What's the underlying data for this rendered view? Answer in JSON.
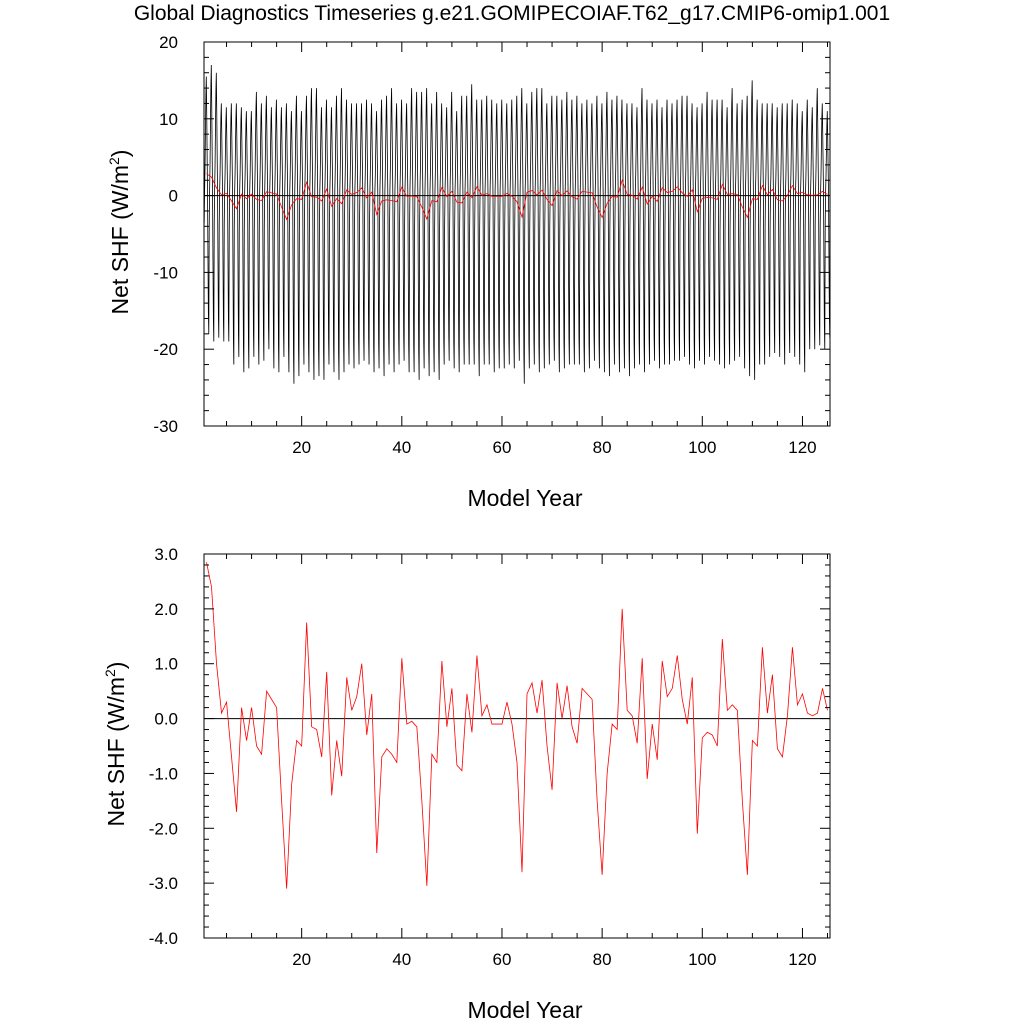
{
  "title": "Global Diagnostics Timeseries g.e21.GOMIPECOIAF.T62_g17.CMIP6-omip1.001",
  "chart_data": [
    {
      "type": "line",
      "xlabel": "Model Year",
      "ylabel_main": "Net SHF (W/m",
      "ylabel_sup": "2",
      "ylabel_close": ")",
      "xlim": [
        0.5,
        125.5
      ],
      "ylim": [
        -30,
        20
      ],
      "xticks": [
        20,
        40,
        60,
        80,
        100,
        120
      ],
      "xtick_labels": [
        "20",
        "40",
        "60",
        "80",
        "100",
        "120"
      ],
      "yticks": [
        -30,
        -20,
        -10,
        0,
        10,
        20
      ],
      "ytick_labels": [
        "-30",
        "-20",
        "-10",
        "0",
        "10",
        "20"
      ],
      "zero_line": true,
      "series": [
        {
          "color": "#000000",
          "kind": "monthly",
          "annual_peaks": [
            15.5,
            17.0,
            16.0,
            12.0,
            11.5,
            12.0,
            12.0,
            11.5,
            11.0,
            11.0,
            13.5,
            12.0,
            13.0,
            11.5,
            12.5,
            11.5,
            12.0,
            11.0,
            13.0,
            11.0,
            13.0,
            14.0,
            14.0,
            11.5,
            12.5,
            11.5,
            13.0,
            14.0,
            12.5,
            12.0,
            12.0,
            12.0,
            12.5,
            12.0,
            11.0,
            12.5,
            13.0,
            14.0,
            12.0,
            12.5,
            12.0,
            14.0,
            13.5,
            13.5,
            14.0,
            12.0,
            13.5,
            12.0,
            11.5,
            13.5,
            11.0,
            13.0,
            13.0,
            14.5,
            12.5,
            12.5,
            13.0,
            12.5,
            12.0,
            12.5,
            12.0,
            12.5,
            13.0,
            14.0,
            12.0,
            13.5,
            14.0,
            14.0,
            12.0,
            13.0,
            13.0,
            12.5,
            13.5,
            12.5,
            13.0,
            12.0,
            12.5,
            12.0,
            13.0,
            12.0,
            13.5,
            12.5,
            13.0,
            12.5,
            12.0,
            12.0,
            11.5,
            14.0,
            12.5,
            12.0,
            12.5,
            11.5,
            12.5,
            12.0,
            12.5,
            13.0,
            13.0,
            12.0,
            11.5,
            12.0,
            13.5,
            12.5,
            12.5,
            12.5,
            11.5,
            14.0,
            12.0,
            12.5,
            13.0,
            15.0,
            12.5,
            12.0,
            12.0,
            12.0,
            11.5,
            12.0,
            12.0,
            12.5,
            12.0,
            11.0,
            12.5,
            11.5,
            14.0,
            12.0,
            11.0
          ],
          "annual_troughs": [
            -18.0,
            -19.0,
            -18.5,
            -19.0,
            -19.0,
            -22.0,
            -21.0,
            -23.0,
            -22.5,
            -21.0,
            -22.0,
            -21.5,
            -20.0,
            -22.5,
            -23.0,
            -21.0,
            -23.0,
            -24.5,
            -23.5,
            -22.0,
            -23.0,
            -24.0,
            -23.5,
            -24.0,
            -22.0,
            -23.0,
            -24.0,
            -23.0,
            -22.0,
            -22.5,
            -22.0,
            -21.5,
            -22.0,
            -23.0,
            -22.5,
            -23.5,
            -22.0,
            -23.0,
            -22.0,
            -21.5,
            -23.0,
            -23.0,
            -24.0,
            -22.5,
            -23.5,
            -23.0,
            -24.0,
            -22.0,
            -21.5,
            -22.5,
            -23.0,
            -22.0,
            -22.0,
            -22.0,
            -23.5,
            -22.0,
            -22.0,
            -23.0,
            -22.5,
            -22.5,
            -22.0,
            -22.5,
            -21.5,
            -24.5,
            -22.5,
            -22.0,
            -23.0,
            -22.5,
            -22.0,
            -21.5,
            -23.0,
            -22.5,
            -22.0,
            -22.0,
            -22.0,
            -23.0,
            -22.5,
            -21.5,
            -22.5,
            -23.0,
            -23.5,
            -22.0,
            -23.0,
            -22.5,
            -23.5,
            -22.5,
            -22.0,
            -23.0,
            -22.0,
            -21.5,
            -22.5,
            -22.0,
            -22.0,
            -21.5,
            -21.5,
            -21.0,
            -22.0,
            -22.5,
            -21.5,
            -22.0,
            -21.0,
            -21.5,
            -22.0,
            -22.5,
            -22.0,
            -21.5,
            -21.0,
            -22.5,
            -23.5,
            -24.0,
            -22.0,
            -22.0,
            -21.0,
            -20.5,
            -21.0,
            -22.0,
            -20.5,
            -21.0,
            -22.0,
            -23.0,
            -20.0,
            -20.0,
            -19.5,
            -20.0,
            -18.5
          ]
        },
        {
          "color": "#ff0000",
          "kind": "annual",
          "ref": "annual_means"
        }
      ]
    },
    {
      "type": "line",
      "xlabel": "Model Year",
      "ylabel_main": "Net SHF (W/m",
      "ylabel_sup": "2",
      "ylabel_close": ")",
      "xlim": [
        0.5,
        125.5
      ],
      "ylim": [
        -4.0,
        3.0
      ],
      "xticks": [
        20,
        40,
        60,
        80,
        100,
        120
      ],
      "xtick_labels": [
        "20",
        "40",
        "60",
        "80",
        "100",
        "120"
      ],
      "yticks": [
        -4,
        -3,
        -2,
        -1,
        0,
        1,
        2,
        3
      ],
      "ytick_labels": [
        "-4.0",
        "-3.0",
        "-2.0",
        "-1.0",
        "0.0",
        "1.0",
        "2.0",
        "3.0"
      ],
      "zero_line": true,
      "series": [
        {
          "color": "#ff0000",
          "kind": "annual",
          "ref": "annual_means"
        }
      ]
    }
  ],
  "annual_means": [
    2.85,
    2.4,
    1.0,
    0.1,
    0.3,
    -0.7,
    -1.7,
    0.2,
    -0.4,
    0.2,
    -0.5,
    -0.65,
    0.5,
    0.35,
    0.2,
    -1.5,
    -3.1,
    -1.2,
    -0.4,
    -0.5,
    1.75,
    -0.15,
    -0.2,
    -0.7,
    0.85,
    -1.4,
    -0.4,
    -1.05,
    0.75,
    0.15,
    0.4,
    1.0,
    -0.3,
    0.45,
    -2.45,
    -0.7,
    -0.55,
    -0.65,
    -0.8,
    1.1,
    -0.1,
    -0.05,
    -0.15,
    -1.5,
    -3.05,
    -0.65,
    -0.8,
    1.05,
    -0.15,
    0.55,
    -0.85,
    -0.95,
    0.45,
    -0.25,
    1.15,
    0.05,
    0.25,
    -0.1,
    -0.1,
    -0.1,
    0.3,
    -0.1,
    -0.8,
    -2.8,
    0.45,
    0.65,
    0.1,
    0.7,
    -0.5,
    -1.3,
    0.65,
    0.0,
    0.6,
    -0.15,
    -0.45,
    0.55,
    0.45,
    0.35,
    -1.5,
    -2.85,
    -1.0,
    -0.1,
    -0.2,
    2.0,
    0.15,
    0.05,
    -0.45,
    1.1,
    -1.1,
    -0.1,
    -0.75,
    1.05,
    0.4,
    0.55,
    1.15,
    0.35,
    -0.1,
    0.75,
    -2.1,
    -0.35,
    -0.25,
    -0.3,
    -0.5,
    1.45,
    0.15,
    0.25,
    0.15,
    -1.5,
    -2.85,
    -0.4,
    -0.5,
    1.3,
    0.1,
    0.8,
    -0.55,
    -0.7,
    0.05,
    1.3,
    0.25,
    0.45,
    0.1,
    0.05,
    0.1,
    0.55,
    0.15
  ]
}
